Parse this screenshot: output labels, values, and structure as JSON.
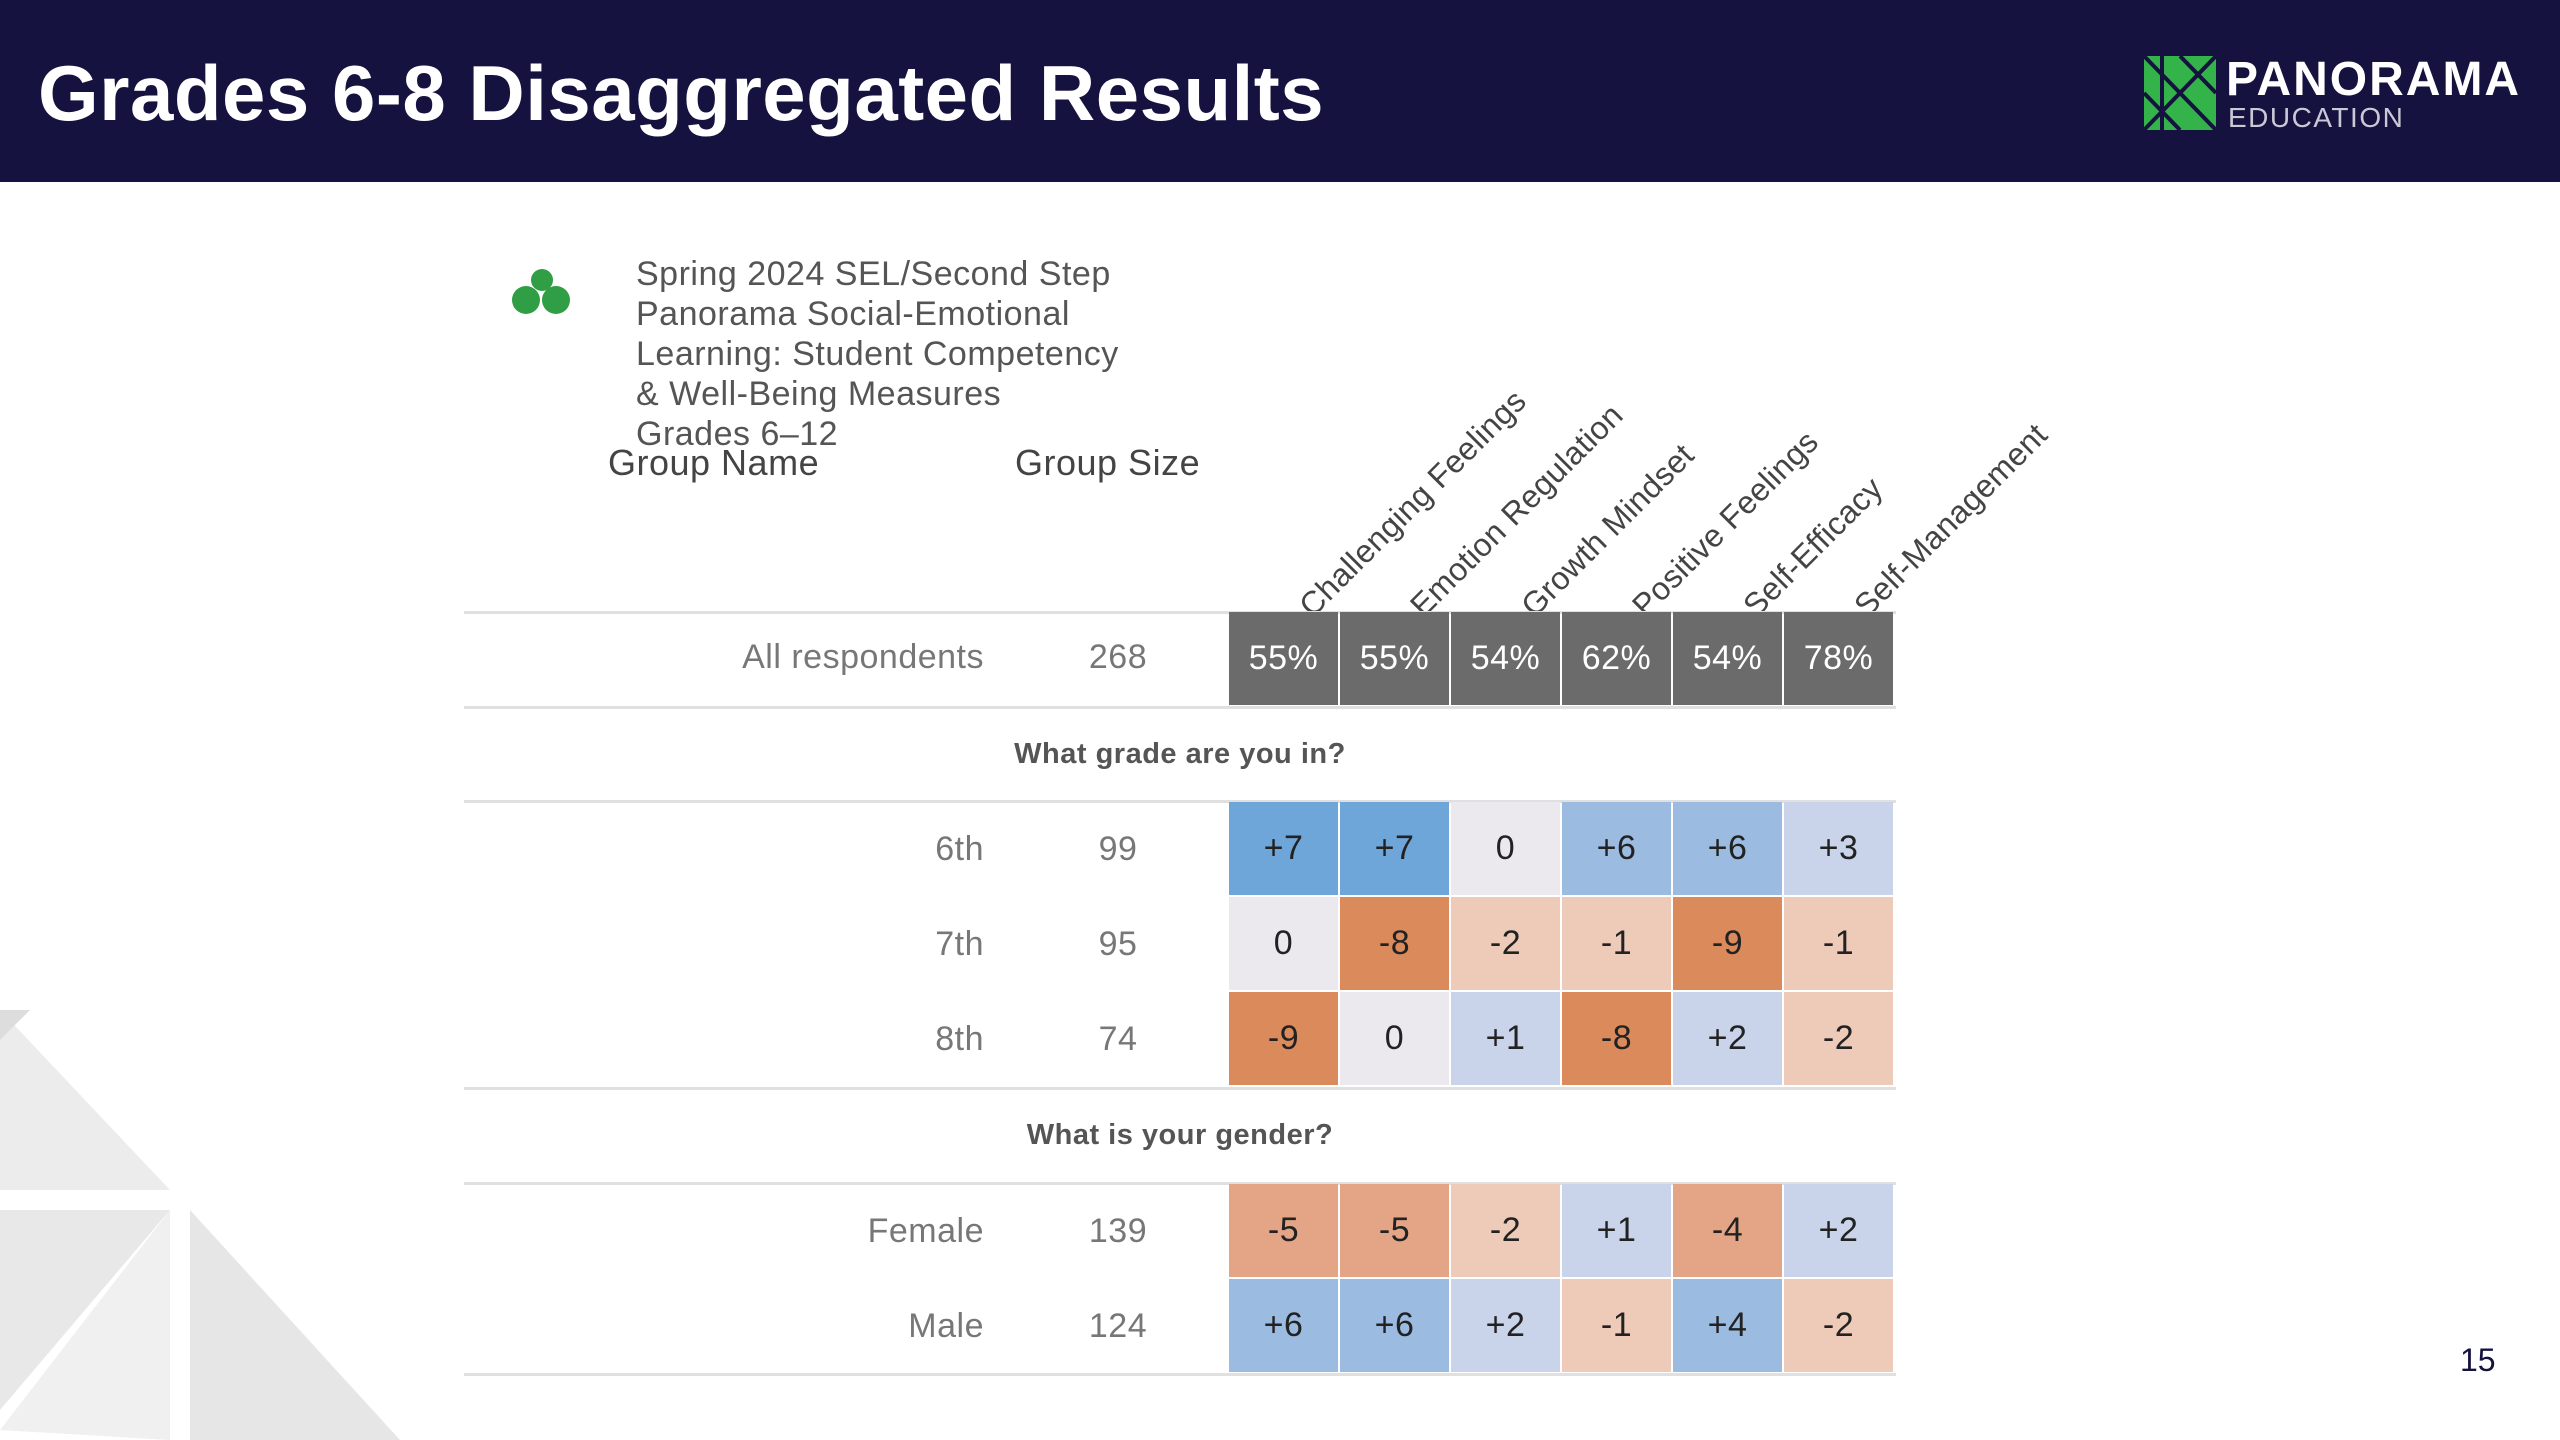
{
  "header": {
    "title": "Grades 6-8 Disaggregated Results"
  },
  "logo": {
    "name": "PANORAMA",
    "sub": "EDUCATION"
  },
  "survey": {
    "icon": "panorama-dots-icon",
    "title_lines": [
      "Spring 2024 SEL/Second Step",
      "Panorama Social-Emotional",
      "Learning: Student Competency",
      "& Well-Being Measures",
      "Grades 6–12"
    ]
  },
  "columns": {
    "group_name": "Group Name",
    "group_size": "Group Size"
  },
  "measures": [
    "Challenging Feelings",
    "Emotion Regulation",
    "Growth Mindset",
    "Positive Feelings",
    "Self-Efficacy",
    "Self-Management"
  ],
  "overall": {
    "label": "All respondents",
    "size": "268",
    "values": [
      "55%",
      "55%",
      "54%",
      "62%",
      "54%",
      "78%"
    ]
  },
  "sections": [
    {
      "title": "What grade are you in?",
      "rows": [
        {
          "label": "6th",
          "size": "99",
          "values": [
            "+7",
            "+7",
            "0",
            "+6",
            "+6",
            "+3"
          ],
          "deltas": [
            7,
            7,
            0,
            6,
            6,
            3
          ]
        },
        {
          "label": "7th",
          "size": "95",
          "values": [
            "0",
            "-8",
            "-2",
            "-1",
            "-9",
            "-1"
          ],
          "deltas": [
            0,
            -8,
            -2,
            -1,
            -9,
            -1
          ]
        },
        {
          "label": "8th",
          "size": "74",
          "values": [
            "-9",
            "0",
            "+1",
            "-8",
            "+2",
            "-2"
          ],
          "deltas": [
            -9,
            0,
            1,
            -8,
            2,
            -2
          ]
        }
      ]
    },
    {
      "title": "What is your gender?",
      "rows": [
        {
          "label": "Female",
          "size": "139",
          "values": [
            "-5",
            "-5",
            "-2",
            "+1",
            "-4",
            "+2"
          ],
          "deltas": [
            -5,
            -5,
            -2,
            1,
            -4,
            2
          ]
        },
        {
          "label": "Male",
          "size": "124",
          "values": [
            "+6",
            "+6",
            "+2",
            "-1",
            "+4",
            "-2"
          ],
          "deltas": [
            6,
            6,
            2,
            -1,
            4,
            -2
          ]
        }
      ]
    }
  ],
  "colors": {
    "header_bg": "#15123f",
    "overall_cell": "#6b6b6b",
    "neutral": "#ece9ee",
    "pos_light": "#c9d4ea",
    "pos_mid": "#9bbbe1",
    "pos_strong": "#6ea6d9",
    "neg_light": "#eecbb8",
    "neg_mid": "#e3a585",
    "neg_strong": "#db8a5c",
    "logo_green": "#34b34a"
  },
  "page_number": "15"
}
